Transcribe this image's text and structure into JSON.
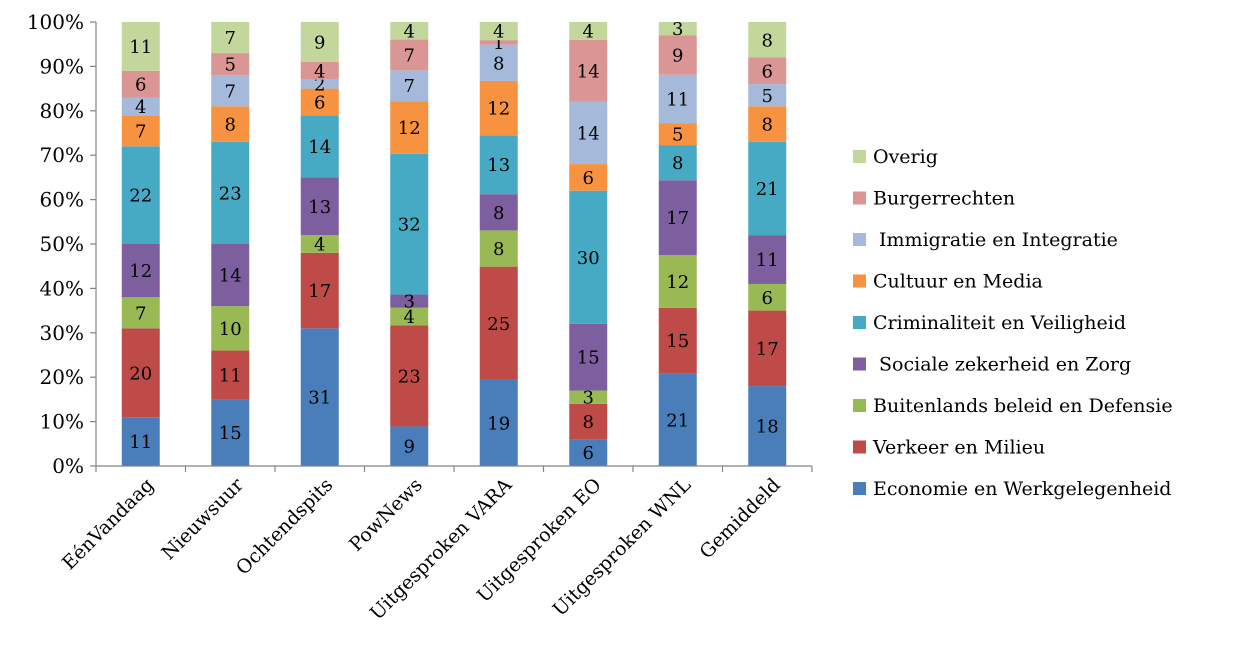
{
  "chart_data": {
    "type": "bar",
    "stacked": "percent",
    "title": "",
    "xlabel": "",
    "ylabel": "",
    "ylim": [
      0,
      100
    ],
    "y_ticks": [
      "0%",
      "10%",
      "20%",
      "30%",
      "40%",
      "50%",
      "60%",
      "70%",
      "80%",
      "90%",
      "100%"
    ],
    "grid": false,
    "legend_position": "right",
    "categories": [
      "EénVandaag",
      "Nieuwsuur",
      "Ochtendspits",
      "PowNews",
      "Uitgesproken VARA",
      "Uitgesproken EO",
      "Uitgesproken WNL",
      "Gemiddeld"
    ],
    "series": [
      {
        "name": "Economie en Werkgelegenheid",
        "color": "#4a7ebb",
        "values": [
          11,
          15,
          31,
          9,
          19,
          6,
          21,
          18
        ]
      },
      {
        "name": "Verkeer en Milieu",
        "color": "#be4b48",
        "values": [
          20,
          11,
          17,
          23,
          25,
          8,
          15,
          17
        ]
      },
      {
        "name": "Buitenlands beleid en Defensie",
        "color": "#98b954",
        "values": [
          7,
          10,
          4,
          4,
          8,
          3,
          12,
          6
        ]
      },
      {
        "name": " Sociale zekerheid en Zorg",
        "color": "#7d5fa0",
        "values": [
          12,
          14,
          13,
          3,
          8,
          15,
          17,
          11
        ]
      },
      {
        "name": "Criminaliteit en Veiligheid",
        "color": "#46aac5",
        "values": [
          22,
          23,
          14,
          32,
          13,
          30,
          8,
          21
        ]
      },
      {
        "name": "Cultuur en Media",
        "color": "#f69240",
        "values": [
          7,
          8,
          6,
          12,
          12,
          6,
          5,
          8
        ]
      },
      {
        "name": " Immigratie en Integratie",
        "color": "#a5b9da",
        "values": [
          4,
          7,
          2,
          7,
          8,
          14,
          11,
          5
        ]
      },
      {
        "name": "Burgerrechten",
        "color": "#d99694",
        "values": [
          6,
          5,
          4,
          7,
          1,
          14,
          9,
          6
        ]
      },
      {
        "name": "Overig",
        "color": "#c3d69b",
        "values": [
          11,
          7,
          9,
          4,
          4,
          4,
          3,
          8
        ]
      }
    ]
  }
}
